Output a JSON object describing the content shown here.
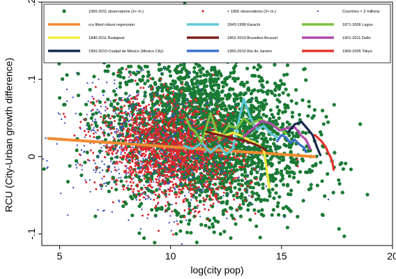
{
  "chart_data": {
    "type": "scatter",
    "title": "",
    "xlabel": "log(city pop)",
    "ylabel": "RCU (City-Urban growth difference)",
    "xlim": [
      4.2,
      20
    ],
    "ylim": [
      -0.115,
      0.2
    ],
    "x_ticks": [
      {
        "value": 5,
        "label": "5"
      },
      {
        "value": 10,
        "label": "10"
      },
      {
        "value": 15,
        "label": "15"
      },
      {
        "value": 20,
        "label": "20"
      }
    ],
    "y_ticks": [
      {
        "value": -0.1,
        "label": "-.1"
      },
      {
        "value": 0,
        "label": "0"
      },
      {
        "value": 0.1,
        "label": ".1"
      },
      {
        "value": 0.2,
        "label": ".2"
      }
    ],
    "grid": false,
    "legend_position": "top",
    "legend": [
      {
        "label": "1950-2011 observations (2+ m.)",
        "kind": "marker",
        "color": "#1a7a35",
        "size": "large"
      },
      {
        "label": "< 1950 observations (2+ m.)",
        "kind": "marker",
        "color": "#e0262b",
        "size": "small"
      },
      {
        "label": "Countries < 2 millions",
        "kind": "marker",
        "color": "#3a4fb8",
        "size": "tiny"
      },
      {
        "label": "rcu fitted robust regression",
        "kind": "line",
        "color": "#f28a30"
      },
      {
        "label": "1843-1998 Karachi",
        "kind": "line",
        "color": "#5ec8d8"
      },
      {
        "label": "1871-2006 Lagos",
        "kind": "line",
        "color": "#7dc242"
      },
      {
        "label": "1840-2011 Budapest",
        "kind": "line",
        "color": "#f0ee3c"
      },
      {
        "label": "1862-2010 Bruxelles-Brussel",
        "kind": "line",
        "color": "#7a1f1f"
      },
      {
        "label": "1901-2011 Delhi",
        "kind": "line",
        "color": "#b04aa8"
      },
      {
        "label": "1950-2010 Ciudad de México (Mexico City)",
        "kind": "line",
        "color": "#14284b"
      },
      {
        "label": "1950-2010 Rio de Janeiro",
        "kind": "line",
        "color": "#3a72c8"
      },
      {
        "label": "1960-2005 Tokyo",
        "kind": "line",
        "color": "#e8332a"
      }
    ],
    "scatter_clouds": [
      {
        "name": "1950-2011 observations (2+ m.)",
        "color": "#1a7a35",
        "center_x": 11.6,
        "spread_x": 2.2,
        "center_y": 0.03,
        "spread_y": 0.05,
        "count": 2600,
        "radius": 2.6
      },
      {
        "name": "Countries < 2 millions",
        "color": "#3a4fb8",
        "center_x": 9.4,
        "spread_x": 1.8,
        "center_y": 0.01,
        "spread_y": 0.038,
        "count": 900,
        "radius": 1.2
      },
      {
        "name": "< 1950 observations (2+ m.)",
        "color": "#e0262b",
        "center_x": 10.0,
        "spread_x": 1.6,
        "center_y": 0.008,
        "spread_y": 0.032,
        "count": 1500,
        "radius": 1.5
      }
    ],
    "fit_line": {
      "name": "rcu fitted robust regression",
      "color": "#f28a30",
      "x": [
        4.5,
        16.5
      ],
      "y": [
        0.0235,
        0.0
      ]
    },
    "series": [
      {
        "name": "1843-1998 Karachi",
        "color": "#5ec8d8",
        "x": [
          10.6,
          11.0,
          11.4,
          11.8,
          12.2,
          12.5,
          12.8,
          13.1,
          13.3,
          13.6,
          13.9,
          14.2,
          14.5,
          14.8
        ],
        "y": [
          0.014,
          0.01,
          0.018,
          0.005,
          0.015,
          0.003,
          0.01,
          0.05,
          0.075,
          0.05,
          0.035,
          0.04,
          0.03,
          0.025
        ]
      },
      {
        "name": "1871-2006 Lagos",
        "color": "#7dc242",
        "x": [
          10.7,
          10.9,
          11.1,
          11.4,
          11.8,
          12.2,
          12.6,
          13.0,
          13.3,
          13.6,
          14.0,
          14.4,
          14.8,
          15.2
        ],
        "y": [
          0.05,
          0.037,
          0.033,
          0.018,
          0.056,
          0.022,
          0.04,
          0.037,
          0.05,
          0.042,
          0.048,
          0.044,
          0.038,
          0.03
        ]
      },
      {
        "name": "1840-2011 Budapest",
        "color": "#f0ee3c",
        "x": [
          11.6,
          12.0,
          12.4,
          12.8,
          13.2,
          13.6,
          14.0,
          14.2,
          14.3,
          14.4,
          14.45
        ],
        "y": [
          0.03,
          0.032,
          0.027,
          0.031,
          0.027,
          0.02,
          0.015,
          0.008,
          -0.01,
          -0.03,
          -0.04
        ]
      },
      {
        "name": "1862-2010 Bruxelles-Brussel",
        "color": "#7a1f1f",
        "x": [
          11.6,
          12.2,
          12.8,
          13.4,
          13.8,
          14.1,
          14.3
        ],
        "y": [
          0.032,
          0.028,
          0.024,
          0.02,
          0.016,
          0.012,
          0.008
        ]
      },
      {
        "name": "1901-2011 Delhi",
        "color": "#b04aa8",
        "x": [
          13.3,
          13.7,
          14.1,
          14.5,
          14.9,
          15.3,
          15.6,
          15.9,
          16.1,
          16.3
        ],
        "y": [
          0.026,
          0.036,
          0.046,
          0.043,
          0.034,
          0.037,
          0.038,
          0.027,
          0.022,
          0.01
        ]
      },
      {
        "name": "1950-2010 Ciudad de México (Mexico City)",
        "color": "#14284b",
        "x": [
          15.3,
          15.6,
          15.9,
          16.2,
          16.4,
          16.6,
          16.75
        ],
        "y": [
          0.032,
          0.042,
          0.045,
          0.035,
          0.028,
          0.012,
          0.002
        ]
      },
      {
        "name": "1950-2010 Rio de Janeiro",
        "color": "#3a72c8",
        "x": [
          14.8,
          15.0,
          15.2,
          15.4,
          15.6,
          15.8,
          16.0,
          16.1
        ],
        "y": [
          0.02,
          0.028,
          0.025,
          0.018,
          0.022,
          0.016,
          0.012,
          0.006
        ]
      },
      {
        "name": "1960-2005 Tokyo",
        "color": "#e8332a",
        "x": [
          16.5,
          16.8,
          17.0,
          17.1,
          17.2,
          17.3,
          17.35
        ],
        "y": [
          0.028,
          0.02,
          0.012,
          0.005,
          0.0,
          -0.008,
          -0.017
        ]
      }
    ]
  }
}
